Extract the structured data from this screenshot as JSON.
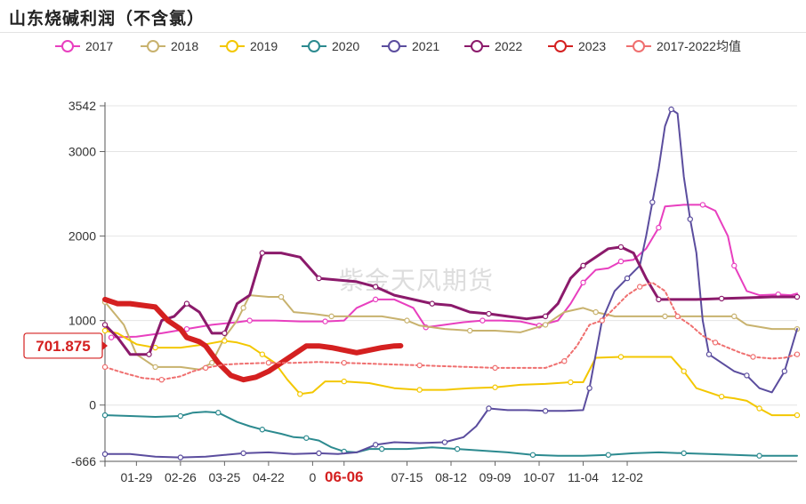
{
  "title": "山东烧碱利润（不含氯）",
  "watermark": "紫金天风期货",
  "chart_data": {
    "type": "line",
    "title": "山东烧碱利润（不含氯）",
    "y_ticks": [
      3542,
      3000,
      2000,
      1000,
      0,
      -666
    ],
    "ylim": [
      -666,
      3542
    ],
    "x_ticks": [
      "01-29",
      "02-26",
      "03-25",
      "04-22",
      "0",
      "06-06",
      "07-15",
      "08-12",
      "09-09",
      "10-07",
      "11-04",
      "12-02"
    ],
    "highlight_x": "06-06",
    "current_value": "701.875",
    "series": [
      {
        "name": "2017",
        "color": "#e83fbf",
        "width": 2,
        "dash": "",
        "points": [
          [
            1,
            800
          ],
          [
            5,
            810
          ],
          [
            9,
            850
          ],
          [
            13,
            900
          ],
          [
            17,
            950
          ],
          [
            21,
            980
          ],
          [
            23,
            1000
          ],
          [
            27,
            1000
          ],
          [
            31,
            990
          ],
          [
            35,
            990
          ],
          [
            38,
            1000
          ],
          [
            40,
            1150
          ],
          [
            43,
            1250
          ],
          [
            46,
            1250
          ],
          [
            49,
            1150
          ],
          [
            51,
            920
          ],
          [
            54,
            950
          ],
          [
            57,
            980
          ],
          [
            60,
            1000
          ],
          [
            63,
            1000
          ],
          [
            66,
            990
          ],
          [
            69,
            940
          ],
          [
            72,
            1000
          ],
          [
            74,
            1200
          ],
          [
            76,
            1450
          ],
          [
            78,
            1600
          ],
          [
            80,
            1620
          ],
          [
            82,
            1700
          ],
          [
            84,
            1720
          ],
          [
            86,
            1850
          ],
          [
            88,
            2100
          ],
          [
            89,
            2350
          ],
          [
            92,
            2370
          ],
          [
            95,
            2370
          ],
          [
            97,
            2300
          ],
          [
            99,
            2000
          ],
          [
            100,
            1650
          ],
          [
            102,
            1350
          ],
          [
            104,
            1300
          ],
          [
            107,
            1310
          ],
          [
            109,
            1300
          ],
          [
            110,
            1320
          ]
        ]
      },
      {
        "name": "2018",
        "color": "#c8b26e",
        "width": 2,
        "dash": "",
        "points": [
          [
            0,
            1220
          ],
          [
            3,
            950
          ],
          [
            5,
            600
          ],
          [
            8,
            450
          ],
          [
            12,
            450
          ],
          [
            15,
            420
          ],
          [
            17,
            500
          ],
          [
            19,
            800
          ],
          [
            21,
            1000
          ],
          [
            22,
            1150
          ],
          [
            23,
            1300
          ],
          [
            26,
            1280
          ],
          [
            28,
            1280
          ],
          [
            30,
            1100
          ],
          [
            33,
            1080
          ],
          [
            36,
            1050
          ],
          [
            40,
            1050
          ],
          [
            44,
            1050
          ],
          [
            48,
            1000
          ],
          [
            50,
            940
          ],
          [
            54,
            900
          ],
          [
            58,
            880
          ],
          [
            62,
            880
          ],
          [
            66,
            860
          ],
          [
            70,
            950
          ],
          [
            73,
            1100
          ],
          [
            76,
            1150
          ],
          [
            78,
            1100
          ],
          [
            81,
            1050
          ],
          [
            85,
            1050
          ],
          [
            89,
            1050
          ],
          [
            93,
            1050
          ],
          [
            97,
            1050
          ],
          [
            100,
            1050
          ],
          [
            102,
            950
          ],
          [
            106,
            900
          ],
          [
            110,
            900
          ]
        ]
      },
      {
        "name": "2019",
        "color": "#f3c700",
        "width": 2,
        "dash": "",
        "points": [
          [
            0,
            880
          ],
          [
            2,
            850
          ],
          [
            5,
            720
          ],
          [
            8,
            680
          ],
          [
            12,
            680
          ],
          [
            16,
            720
          ],
          [
            19,
            760
          ],
          [
            21,
            740
          ],
          [
            23,
            700
          ],
          [
            25,
            600
          ],
          [
            27,
            500
          ],
          [
            29,
            300
          ],
          [
            31,
            130
          ],
          [
            33,
            150
          ],
          [
            35,
            280
          ],
          [
            38,
            280
          ],
          [
            42,
            260
          ],
          [
            46,
            200
          ],
          [
            50,
            180
          ],
          [
            54,
            180
          ],
          [
            58,
            200
          ],
          [
            62,
            210
          ],
          [
            66,
            240
          ],
          [
            70,
            250
          ],
          [
            74,
            270
          ],
          [
            76,
            270
          ],
          [
            78,
            560
          ],
          [
            82,
            570
          ],
          [
            86,
            570
          ],
          [
            90,
            570
          ],
          [
            92,
            400
          ],
          [
            94,
            200
          ],
          [
            96,
            150
          ],
          [
            98,
            100
          ],
          [
            100,
            80
          ],
          [
            102,
            50
          ],
          [
            104,
            -40
          ],
          [
            106,
            -120
          ],
          [
            108,
            -120
          ],
          [
            110,
            -120
          ]
        ]
      },
      {
        "name": "2020",
        "color": "#2c8a8f",
        "width": 2,
        "dash": "",
        "points": [
          [
            0,
            -120
          ],
          [
            4,
            -130
          ],
          [
            8,
            -140
          ],
          [
            12,
            -130
          ],
          [
            14,
            -90
          ],
          [
            16,
            -80
          ],
          [
            18,
            -90
          ],
          [
            21,
            -200
          ],
          [
            23,
            -250
          ],
          [
            25,
            -290
          ],
          [
            28,
            -340
          ],
          [
            30,
            -380
          ],
          [
            32,
            -390
          ],
          [
            34,
            -420
          ],
          [
            36,
            -500
          ],
          [
            38,
            -550
          ],
          [
            40,
            -560
          ],
          [
            42,
            -520
          ],
          [
            44,
            -520
          ],
          [
            48,
            -520
          ],
          [
            52,
            -500
          ],
          [
            56,
            -520
          ],
          [
            60,
            -540
          ],
          [
            64,
            -560
          ],
          [
            68,
            -590
          ],
          [
            72,
            -600
          ],
          [
            76,
            -600
          ],
          [
            80,
            -590
          ],
          [
            84,
            -570
          ],
          [
            88,
            -560
          ],
          [
            92,
            -570
          ],
          [
            96,
            -580
          ],
          [
            100,
            -590
          ],
          [
            104,
            -600
          ],
          [
            108,
            -600
          ],
          [
            110,
            -600
          ]
        ]
      },
      {
        "name": "2021",
        "color": "#5b4d9e",
        "width": 2,
        "dash": "",
        "points": [
          [
            0,
            -580
          ],
          [
            4,
            -580
          ],
          [
            8,
            -610
          ],
          [
            12,
            -620
          ],
          [
            16,
            -610
          ],
          [
            19,
            -590
          ],
          [
            22,
            -570
          ],
          [
            26,
            -560
          ],
          [
            30,
            -580
          ],
          [
            34,
            -570
          ],
          [
            37,
            -580
          ],
          [
            40,
            -560
          ],
          [
            43,
            -470
          ],
          [
            46,
            -440
          ],
          [
            50,
            -450
          ],
          [
            54,
            -440
          ],
          [
            57,
            -380
          ],
          [
            59,
            -250
          ],
          [
            61,
            -40
          ],
          [
            64,
            -60
          ],
          [
            67,
            -60
          ],
          [
            70,
            -70
          ],
          [
            73,
            -70
          ],
          [
            76,
            -60
          ],
          [
            77,
            200
          ],
          [
            79,
            1000
          ],
          [
            81,
            1350
          ],
          [
            83,
            1500
          ],
          [
            85,
            1650
          ],
          [
            86,
            2000
          ],
          [
            87,
            2400
          ],
          [
            88,
            2800
          ],
          [
            89,
            3300
          ],
          [
            90,
            3500
          ],
          [
            91,
            3450
          ],
          [
            92,
            2700
          ],
          [
            93,
            2200
          ],
          [
            94,
            1800
          ],
          [
            95,
            1000
          ],
          [
            96,
            600
          ],
          [
            98,
            500
          ],
          [
            100,
            400
          ],
          [
            102,
            350
          ],
          [
            104,
            200
          ],
          [
            106,
            150
          ],
          [
            108,
            400
          ],
          [
            110,
            900
          ]
        ]
      },
      {
        "name": "2022",
        "color": "#8b1a6b",
        "width": 3,
        "dash": "",
        "points": [
          [
            0,
            950
          ],
          [
            2,
            800
          ],
          [
            4,
            600
          ],
          [
            7,
            600
          ],
          [
            9,
            1000
          ],
          [
            11,
            1050
          ],
          [
            13,
            1200
          ],
          [
            15,
            1100
          ],
          [
            17,
            850
          ],
          [
            19,
            850
          ],
          [
            21,
            1200
          ],
          [
            23,
            1300
          ],
          [
            25,
            1800
          ],
          [
            28,
            1800
          ],
          [
            31,
            1750
          ],
          [
            34,
            1500
          ],
          [
            37,
            1480
          ],
          [
            40,
            1460
          ],
          [
            43,
            1400
          ],
          [
            46,
            1300
          ],
          [
            49,
            1250
          ],
          [
            52,
            1200
          ],
          [
            55,
            1180
          ],
          [
            58,
            1100
          ],
          [
            61,
            1080
          ],
          [
            64,
            1050
          ],
          [
            67,
            1020
          ],
          [
            70,
            1050
          ],
          [
            72,
            1200
          ],
          [
            74,
            1500
          ],
          [
            76,
            1650
          ],
          [
            78,
            1750
          ],
          [
            80,
            1850
          ],
          [
            82,
            1870
          ],
          [
            84,
            1800
          ],
          [
            86,
            1500
          ],
          [
            88,
            1250
          ],
          [
            90,
            1250
          ],
          [
            94,
            1250
          ],
          [
            98,
            1260
          ],
          [
            102,
            1270
          ],
          [
            106,
            1280
          ],
          [
            110,
            1280
          ]
        ]
      },
      {
        "name": "2023",
        "color": "#d42020",
        "width": 6,
        "dash": "",
        "points": [
          [
            0,
            1250
          ],
          [
            2,
            1200
          ],
          [
            4,
            1200
          ],
          [
            6,
            1180
          ],
          [
            8,
            1160
          ],
          [
            10,
            1000
          ],
          [
            12,
            900
          ],
          [
            13,
            800
          ],
          [
            15,
            750
          ],
          [
            16,
            700
          ],
          [
            18,
            500
          ],
          [
            20,
            350
          ],
          [
            22,
            300
          ],
          [
            24,
            330
          ],
          [
            26,
            400
          ],
          [
            28,
            500
          ],
          [
            30,
            600
          ],
          [
            32,
            700
          ],
          [
            34,
            700
          ],
          [
            36,
            680
          ],
          [
            38,
            650
          ],
          [
            40,
            620
          ],
          [
            42,
            650
          ],
          [
            44,
            680
          ],
          [
            46,
            700
          ],
          [
            47,
            702
          ]
        ]
      },
      {
        "name": "2017-2022均值",
        "color": "#ef6f6f",
        "width": 2,
        "dash": "3,3",
        "points": [
          [
            0,
            450
          ],
          [
            3,
            380
          ],
          [
            6,
            320
          ],
          [
            9,
            300
          ],
          [
            12,
            340
          ],
          [
            14,
            400
          ],
          [
            16,
            440
          ],
          [
            19,
            480
          ],
          [
            22,
            490
          ],
          [
            26,
            500
          ],
          [
            30,
            500
          ],
          [
            34,
            510
          ],
          [
            38,
            500
          ],
          [
            42,
            490
          ],
          [
            46,
            480
          ],
          [
            50,
            470
          ],
          [
            54,
            460
          ],
          [
            58,
            450
          ],
          [
            62,
            440
          ],
          [
            66,
            440
          ],
          [
            70,
            440
          ],
          [
            73,
            520
          ],
          [
            75,
            700
          ],
          [
            77,
            950
          ],
          [
            79,
            1000
          ],
          [
            81,
            1150
          ],
          [
            83,
            1300
          ],
          [
            85,
            1400
          ],
          [
            87,
            1450
          ],
          [
            89,
            1350
          ],
          [
            91,
            1050
          ],
          [
            93,
            950
          ],
          [
            95,
            820
          ],
          [
            97,
            740
          ],
          [
            99,
            680
          ],
          [
            101,
            620
          ],
          [
            103,
            570
          ],
          [
            106,
            550
          ],
          [
            108,
            560
          ],
          [
            110,
            600
          ]
        ]
      }
    ]
  }
}
